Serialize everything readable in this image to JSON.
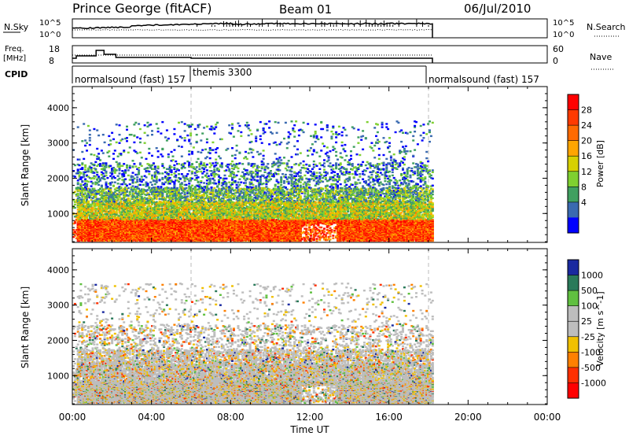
{
  "header": {
    "station": "Prince George (fitACF)",
    "beam": "Beam 01",
    "date": "06/Jul/2010"
  },
  "panels": {
    "nsky": {
      "label": "N.Sky",
      "ticks": [
        "10^5",
        "10^0"
      ],
      "right_label": "N.Search",
      "right_ticks": [
        "10^5",
        "10^0"
      ]
    },
    "freq": {
      "label_top": "Freq.",
      "label_bottom": "[MHz]",
      "ticks": [
        "18",
        "8"
      ],
      "right_label": "Nave",
      "right_ticks": [
        "60",
        "0"
      ]
    },
    "cpid": {
      "label": "CPID",
      "segments": [
        {
          "name": "normalsound (fast) 157",
          "start": 0.0
        },
        {
          "name": "themis 3300",
          "start": 6.0
        },
        {
          "name": "normalsound (fast) 157",
          "start": 18.0
        }
      ]
    }
  },
  "colorbars": {
    "power": {
      "label": "Power [dB]",
      "ticks": [
        "28",
        "24",
        "20",
        "16",
        "12",
        "8",
        "4"
      ],
      "colors": [
        "#ff0000",
        "#ff3a00",
        "#ff6a00",
        "#ffa500",
        "#d7d000",
        "#7fd030",
        "#40a060",
        "#3a6ab0",
        "#0000ff"
      ]
    },
    "velocity": {
      "label": "Velocity [m s^-1]",
      "ticks": [
        "1000",
        "500",
        "100",
        "25",
        "-25",
        "-100",
        "-500",
        "-1000"
      ],
      "colors": [
        "#1a2aa0",
        "#2a7a5a",
        "#60c040",
        "#bdbdbd",
        "#bdbdbd",
        "#f0c000",
        "#ff8000",
        "#ff3000",
        "#ff0000"
      ]
    }
  },
  "chart_data": {
    "type": "heatmap",
    "xlabel": "Time UT",
    "ylabel": "Slant Range [km]",
    "x_ticks": [
      "00:00",
      "04:00",
      "08:00",
      "12:00",
      "16:00",
      "20:00",
      "00:00"
    ],
    "xlim_hours": [
      0,
      24
    ],
    "ylim_km": [
      180,
      4600
    ],
    "y_ticks": [
      "1000",
      "2000",
      "3000",
      "4000"
    ],
    "data_end_hours": 18.2,
    "cpid_boundaries_hours": [
      6.0,
      18.0
    ],
    "power_bands": [
      {
        "t0": 0.0,
        "t1": 18.2,
        "r0": 200,
        "r1": 800,
        "level": "strong"
      },
      {
        "t0": 0.0,
        "t1": 18.2,
        "r0": 800,
        "r1": 1600,
        "level": "medium"
      },
      {
        "t0": 0.0,
        "t1": 18.2,
        "r0": 1600,
        "r1": 2400,
        "level": "weak"
      },
      {
        "t0": 2.5,
        "t1": 17.5,
        "r0": 2400,
        "r1": 3500,
        "level": "sparse"
      }
    ]
  }
}
